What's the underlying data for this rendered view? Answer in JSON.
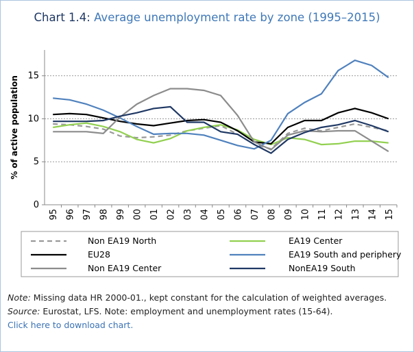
{
  "chart_data": {
    "type": "line",
    "title_prefix": "Chart 1.4:",
    "title": "Average unemployment rate by zone (1995–2015)",
    "y_label": "% of active population",
    "categories": [
      "95",
      "96",
      "97",
      "98",
      "99",
      "00",
      "01",
      "02",
      "03",
      "04",
      "05",
      "06",
      "07",
      "08",
      "09",
      "10",
      "11",
      "12",
      "13",
      "14",
      "15"
    ],
    "ylim": [
      0,
      18
    ],
    "yticks": [
      0,
      5,
      10,
      15
    ],
    "grid": true,
    "series": [
      {
        "name": "Non EA19 North",
        "color": "#999999",
        "line_style": "dashed",
        "values": [
          9.4,
          9.3,
          9.1,
          8.8,
          8.0,
          7.8,
          7.9,
          8.1,
          8.6,
          8.9,
          9.2,
          8.2,
          7.0,
          6.5,
          8.3,
          8.9,
          8.6,
          9.0,
          9.4,
          9.0,
          8.6
        ]
      },
      {
        "name": "EA19 Center",
        "color": "#92d050",
        "line_style": "solid",
        "values": [
          9.0,
          9.3,
          9.5,
          9.1,
          8.5,
          7.6,
          7.2,
          7.7,
          8.6,
          9.0,
          9.3,
          8.7,
          7.6,
          7.0,
          7.8,
          7.6,
          7.0,
          7.1,
          7.4,
          7.4,
          7.2
        ]
      },
      {
        "name": "EU28",
        "color": "#000000",
        "line_style": "solid",
        "values": [
          10.5,
          10.6,
          10.5,
          10.1,
          9.7,
          9.4,
          9.2,
          9.5,
          9.8,
          9.9,
          9.6,
          8.6,
          7.3,
          7.1,
          9.0,
          9.8,
          9.8,
          10.7,
          11.2,
          10.7,
          10.0
        ]
      },
      {
        "name": "EA19 South and periphery",
        "color": "#4f81bd",
        "line_style": "solid",
        "values": [
          12.4,
          12.2,
          11.7,
          11.0,
          10.1,
          9.1,
          8.2,
          8.3,
          8.3,
          8.1,
          7.5,
          6.9,
          6.5,
          7.5,
          10.6,
          11.9,
          12.9,
          15.6,
          16.8,
          16.2,
          14.8
        ]
      },
      {
        "name": "Non EA19 Center",
        "color": "#8c8c8c",
        "line_style": "solid",
        "values": [
          8.5,
          8.5,
          8.5,
          8.3,
          10.2,
          11.7,
          12.7,
          13.5,
          13.5,
          13.3,
          12.7,
          10.4,
          7.3,
          6.4,
          8.1,
          8.6,
          8.5,
          8.6,
          8.6,
          7.4,
          6.2
        ]
      },
      {
        "name": "NonEA19 South",
        "color": "#1f3864",
        "line_style": "solid",
        "values": [
          9.7,
          9.7,
          9.7,
          9.8,
          10.3,
          10.7,
          11.2,
          11.4,
          9.6,
          9.6,
          8.5,
          8.2,
          7.0,
          6.0,
          7.6,
          8.4,
          9.0,
          9.3,
          9.8,
          9.2,
          8.5
        ]
      }
    ]
  },
  "notes": {
    "note_label": "Note:",
    "note_text": "Missing data HR 2000-01., kept constant  for the calculation of weighted averages.",
    "source_label": "Source:",
    "source_text": "Eurostat, LFS. Note: employment and unemployment rates (15-64).",
    "link": "Click here to download chart."
  }
}
